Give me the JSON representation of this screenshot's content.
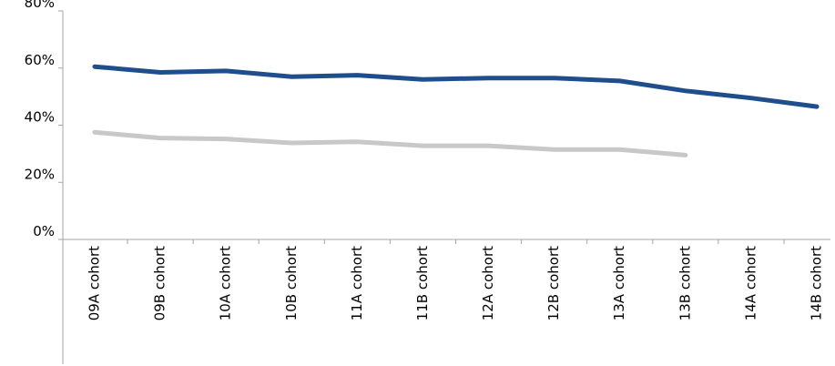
{
  "chart_data": {
    "type": "line",
    "title": "",
    "xlabel": "",
    "ylabel": "",
    "ylim": [
      0,
      80
    ],
    "y_ticks": [
      "0%",
      "20%",
      "40%",
      "60%",
      "80%"
    ],
    "y_tick_values": [
      0,
      20,
      40,
      60,
      80
    ],
    "grid": false,
    "legend": "none",
    "categories": [
      "09A cohort",
      "09B cohort",
      "10A cohort",
      "10B cohort",
      "11A cohort",
      "11B cohort",
      "12A cohort",
      "12B cohort",
      "13A cohort",
      "13B cohort",
      "14A cohort",
      "14B cohort"
    ],
    "series": [
      {
        "color": "#1f4e8c",
        "values": [
          60.5,
          58.5,
          59,
          57,
          57.5,
          56,
          56.5,
          56.5,
          55.5,
          52,
          49.5,
          46.5
        ]
      },
      {
        "color": "#c8c8c8",
        "values": [
          37.5,
          35.5,
          35.2,
          33.8,
          34.2,
          32.8,
          32.8,
          31.5,
          31.5,
          29.5,
          null,
          null
        ]
      }
    ]
  }
}
